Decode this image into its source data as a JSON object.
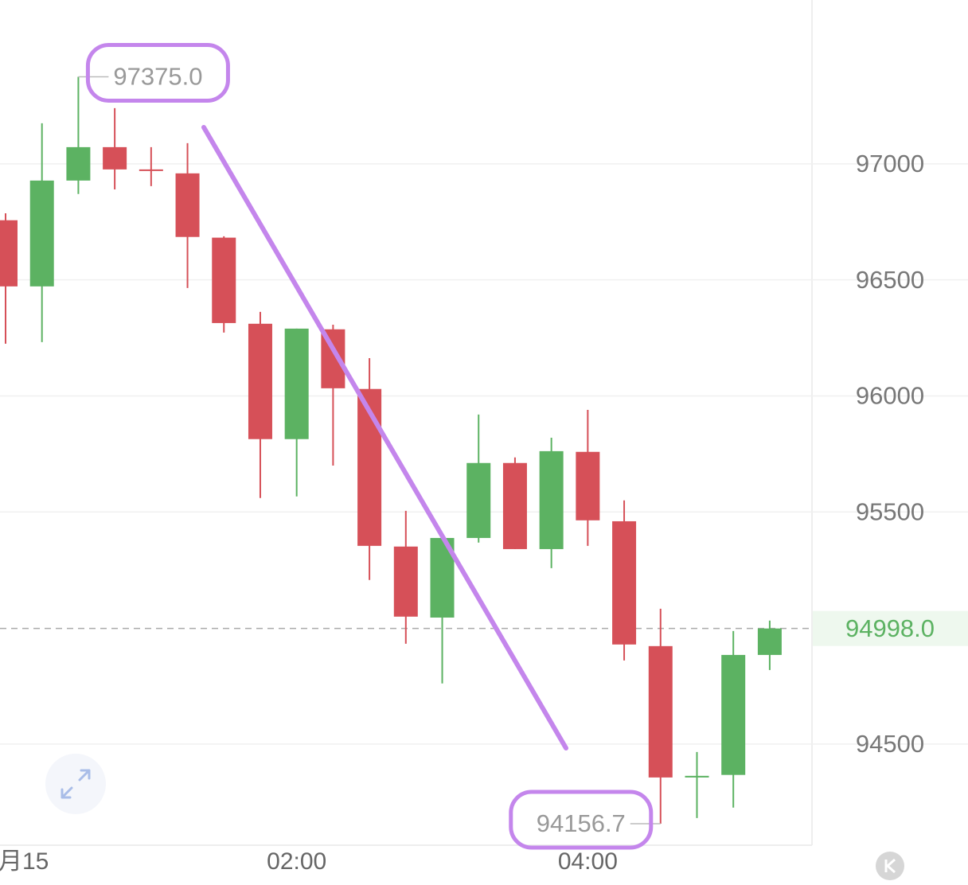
{
  "chart_data": {
    "type": "candlestick",
    "categories": [
      "月15",
      null,
      null,
      null,
      null,
      null,
      null,
      null,
      "02:00",
      null,
      null,
      null,
      null,
      null,
      null,
      null,
      "04:00",
      null,
      null,
      null,
      null,
      null
    ],
    "open": [
      96757,
      96472,
      96928,
      97072,
      96976,
      96959,
      96682,
      96311,
      95814,
      96287,
      96030,
      95351,
      95045,
      95388,
      95711,
      95340,
      95759,
      95460,
      94922,
      94356,
      94367,
      94884
    ],
    "high": [
      96787,
      97175,
      97375,
      97240,
      97072,
      97089,
      96688,
      96362,
      96290,
      96307,
      96163,
      95505,
      95388,
      95920,
      95735,
      95820,
      95940,
      95550,
      95083,
      94466,
      94987,
      95032
    ],
    "low": [
      96225,
      96232,
      96870,
      96890,
      96904,
      96465,
      96273,
      95560,
      95567,
      95700,
      95207,
      94932,
      94761,
      95368,
      95340,
      95258,
      95354,
      94860,
      94156.7,
      94181,
      94226,
      94819
    ],
    "close": [
      96472,
      96928,
      97072,
      96976,
      96970,
      96685,
      96314,
      95814,
      96290,
      96033,
      95354,
      95049,
      95388,
      95711,
      95340,
      95762,
      95464,
      94929,
      94356,
      94363,
      94884,
      94998
    ],
    "up_color": "#5cb262",
    "down_color": "#d65058",
    "ylim": [
      94071,
      97706
    ],
    "yticks": [
      94500,
      95500,
      96000,
      96500,
      97000
    ],
    "grid": true,
    "last_price": {
      "value": 94998,
      "label": "94998.0"
    },
    "annotations": [
      {
        "value": 97375,
        "label": "97375.0"
      },
      {
        "value": 94156.7,
        "label": "94156.7"
      }
    ]
  }
}
